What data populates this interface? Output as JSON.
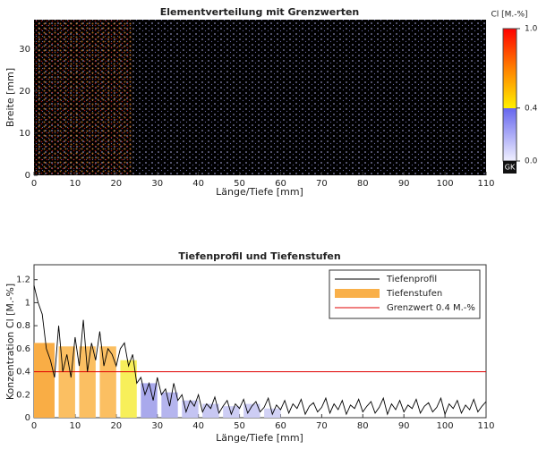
{
  "chart_data": [
    {
      "type": "heatmap",
      "title": "Elementverteilung mit Grenzwerten",
      "xlabel": "Länge/Tiefe [mm]",
      "ylabel": "Breite [mm]",
      "xlim": [
        0,
        110
      ],
      "xticks": [
        0,
        10,
        20,
        30,
        40,
        50,
        60,
        70,
        80,
        90,
        100,
        110
      ],
      "ylim": [
        0,
        37
      ],
      "yticks": [
        0,
        10,
        20,
        30
      ],
      "colorbar": {
        "label": "Cl [M.-%]",
        "lim": [
          0,
          1
        ],
        "ticks": [
          {
            "value": 0,
            "label": "0.0"
          },
          {
            "value": 0.4,
            "label": "0.4"
          },
          {
            "value": 1,
            "label": "1.0"
          }
        ],
        "below_label": "GK"
      }
    },
    {
      "type": "line",
      "title": "Tiefenprofil und Tiefenstufen",
      "xlabel": "Länge/Tiefe [mm]",
      "ylabel": "Konzentration Cl [M.-%]",
      "xlim": [
        0,
        110
      ],
      "xticks": [
        0,
        10,
        20,
        30,
        40,
        50,
        60,
        70,
        80,
        90,
        100,
        110
      ],
      "ylim": [
        0,
        1.33
      ],
      "yticks": [
        0,
        0.2,
        0.4,
        0.6,
        0.8,
        1,
        1.2
      ],
      "x": [
        0,
        1,
        2,
        3,
        4,
        5,
        6,
        7,
        8,
        9,
        10,
        11,
        12,
        13,
        14,
        15,
        16,
        17,
        18,
        19,
        20,
        21,
        22,
        23,
        24,
        25,
        26,
        27,
        28,
        29,
        30,
        31,
        32,
        33,
        34,
        35,
        36,
        37,
        38,
        39,
        40,
        41,
        42,
        43,
        44,
        45,
        46,
        47,
        48,
        49,
        50,
        51,
        52,
        53,
        54,
        55,
        56,
        57,
        58,
        59,
        60,
        61,
        62,
        63,
        64,
        65,
        66,
        67,
        68,
        69,
        70,
        71,
        72,
        73,
        74,
        75,
        76,
        77,
        78,
        79,
        80,
        81,
        82,
        83,
        84,
        85,
        86,
        87,
        88,
        89,
        90,
        91,
        92,
        93,
        94,
        95,
        96,
        97,
        98,
        99,
        100,
        101,
        102,
        103,
        104,
        105,
        106,
        107,
        108,
        109,
        110
      ],
      "series": [
        {
          "name": "Tiefenprofil",
          "color": "#000000",
          "values": [
            1.15,
            1.0,
            0.9,
            0.6,
            0.5,
            0.35,
            0.8,
            0.4,
            0.55,
            0.35,
            0.7,
            0.45,
            0.85,
            0.4,
            0.65,
            0.5,
            0.75,
            0.45,
            0.6,
            0.55,
            0.45,
            0.6,
            0.65,
            0.45,
            0.55,
            0.3,
            0.35,
            0.2,
            0.3,
            0.15,
            0.35,
            0.2,
            0.25,
            0.1,
            0.3,
            0.15,
            0.2,
            0.05,
            0.15,
            0.1,
            0.2,
            0.05,
            0.12,
            0.08,
            0.18,
            0.04,
            0.1,
            0.15,
            0.03,
            0.12,
            0.08,
            0.16,
            0.04,
            0.1,
            0.14,
            0.05,
            0.09,
            0.17,
            0.03,
            0.11,
            0.07,
            0.15,
            0.04,
            0.12,
            0.08,
            0.16,
            0.03,
            0.1,
            0.13,
            0.05,
            0.09,
            0.17,
            0.04,
            0.12,
            0.07,
            0.15,
            0.03,
            0.11,
            0.08,
            0.16,
            0.05,
            0.1,
            0.14,
            0.04,
            0.09,
            0.17,
            0.03,
            0.12,
            0.07,
            0.15,
            0.05,
            0.11,
            0.08,
            0.16,
            0.04,
            0.1,
            0.13,
            0.05,
            0.09,
            0.17,
            0.03,
            0.12,
            0.08,
            0.15,
            0.04,
            0.11,
            0.07,
            0.16,
            0.05,
            0.1,
            0.14
          ]
        }
      ],
      "steps": {
        "name": "Tiefenstufen",
        "color": "#f9b04a",
        "bins": [
          [
            0,
            5
          ],
          [
            6,
            10
          ],
          [
            11,
            15
          ],
          [
            16,
            20
          ],
          [
            21,
            25
          ],
          [
            26,
            30
          ],
          [
            31,
            35
          ],
          [
            36,
            40
          ],
          [
            41,
            45
          ],
          [
            46,
            50
          ],
          [
            51,
            55
          ],
          [
            56,
            60
          ]
        ],
        "values": [
          0.65,
          0.62,
          0.62,
          0.62,
          0.5,
          0.3,
          0.22,
          0.15,
          0.12,
          0.1,
          0.12,
          0.08
        ],
        "colors": [
          "#f9ad45",
          "#fbbf62",
          "#fbbf62",
          "#fbbf62",
          "#f7ef5a",
          "#a9a9ec",
          "#b5b5ee",
          "#c4c4f2",
          "#c8c8f3",
          "#cdcdf4",
          "#cdcdf4",
          "#d2d2f5"
        ]
      },
      "threshold": {
        "name": "Grenzwert 0.4 M.-%",
        "color": "#e00000",
        "value": 0.4
      }
    }
  ]
}
